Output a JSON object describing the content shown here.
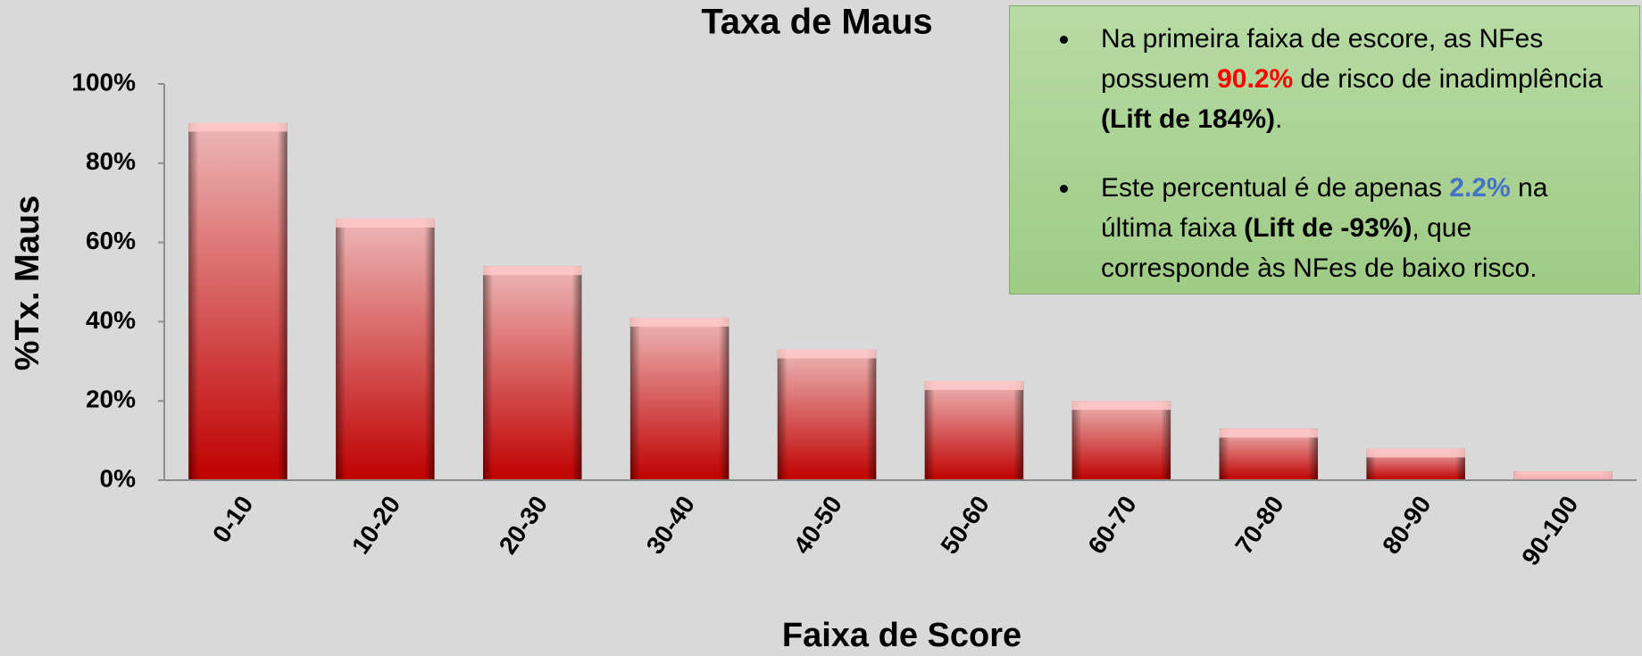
{
  "chart_data": {
    "type": "bar",
    "title": "Taxa de Maus",
    "x_label": "Faixa de Score",
    "y_label": "%Tx. Maus",
    "categories": [
      "0-10",
      "10-20",
      "20-30",
      "30-40",
      "40-50",
      "50-60",
      "60-70",
      "70-80",
      "80-90",
      "90-100"
    ],
    "values": [
      90.2,
      66,
      54,
      41,
      33,
      25,
      20,
      13,
      8,
      2.2
    ],
    "color": "#c00000",
    "ylim": [
      0,
      100
    ],
    "yticks": [
      {
        "value": 0,
        "label": "0%"
      },
      {
        "value": 20,
        "label": "20%"
      },
      {
        "value": 40,
        "label": "40%"
      },
      {
        "value": 60,
        "label": "60%"
      },
      {
        "value": 80,
        "label": "80%"
      },
      {
        "value": 100,
        "label": "100%"
      }
    ],
    "grid": false,
    "annotations": [
      {
        "parts": [
          "Na primeira faixa de escore, as NFes possuem ",
          "90.2%",
          " de risco de inadimplência ",
          "(Lift de 184%)",
          "."
        ]
      },
      {
        "parts": [
          "Este percentual é de apenas ",
          "2.2%",
          " na última faixa ",
          "(Lift de -93%)",
          ", que corresponde às NFes de baixo risco."
        ]
      }
    ]
  }
}
